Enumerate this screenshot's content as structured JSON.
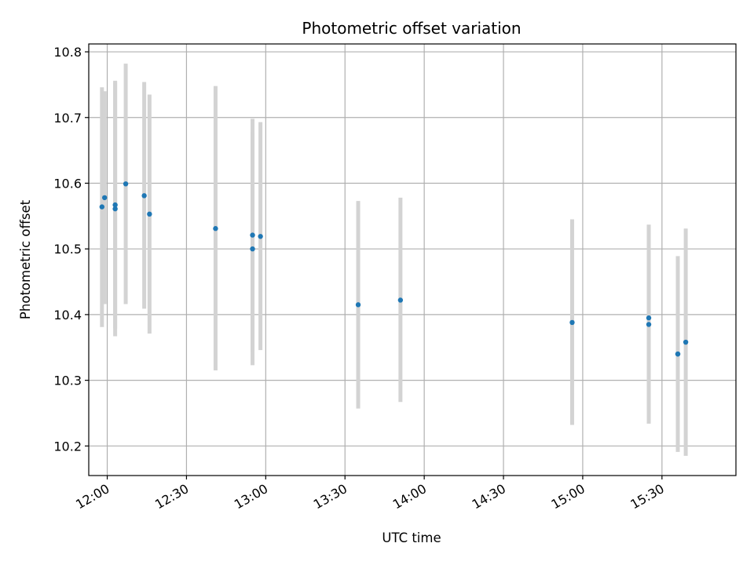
{
  "chart_data": {
    "type": "scatter",
    "title": "Photometric offset variation",
    "xlabel": "UTC time",
    "ylabel": "Photometric offset",
    "x_unit": "UTC time of day (HH:MM)",
    "xlim": [
      "11:53",
      "15:58"
    ],
    "ylim": [
      10.155,
      10.812
    ],
    "x_ticks": [
      "12:00",
      "12:30",
      "13:00",
      "13:30",
      "14:00",
      "14:30",
      "15:00",
      "15:30"
    ],
    "y_ticks": [
      10.2,
      10.3,
      10.4,
      10.5,
      10.6,
      10.7,
      10.8
    ],
    "y_tick_labels": [
      "10.2",
      "10.3",
      "10.4",
      "10.5",
      "10.6",
      "10.7",
      "10.8"
    ],
    "grid": true,
    "x_tick_rotation": "30deg",
    "points": [
      {
        "x": "11:58",
        "y": 10.564,
        "err_low": 10.381,
        "err_high": 10.746
      },
      {
        "x": "11:59",
        "y": 10.578,
        "err_low": 10.416,
        "err_high": 10.74
      },
      {
        "x": "12:03",
        "y": 10.561,
        "err_low": 10.367,
        "err_high": 10.756
      },
      {
        "x": "12:03",
        "y": 10.567,
        "err_low": 10.379,
        "err_high": 10.754
      },
      {
        "x": "12:07",
        "y": 10.599,
        "err_low": 10.416,
        "err_high": 10.782
      },
      {
        "x": "12:14",
        "y": 10.581,
        "err_low": 10.409,
        "err_high": 10.754
      },
      {
        "x": "12:16",
        "y": 10.553,
        "err_low": 10.371,
        "err_high": 10.735
      },
      {
        "x": "12:41",
        "y": 10.531,
        "err_low": 10.315,
        "err_high": 10.748
      },
      {
        "x": "12:55",
        "y": 10.5,
        "err_low": 10.323,
        "err_high": 10.677
      },
      {
        "x": "12:55",
        "y": 10.521,
        "err_low": 10.344,
        "err_high": 10.698
      },
      {
        "x": "12:58",
        "y": 10.519,
        "err_low": 10.346,
        "err_high": 10.693
      },
      {
        "x": "13:35",
        "y": 10.415,
        "err_low": 10.257,
        "err_high": 10.573
      },
      {
        "x": "13:51",
        "y": 10.422,
        "err_low": 10.267,
        "err_high": 10.578
      },
      {
        "x": "14:56",
        "y": 10.388,
        "err_low": 10.232,
        "err_high": 10.545
      },
      {
        "x": "15:25",
        "y": 10.395,
        "err_low": 10.254,
        "err_high": 10.536
      },
      {
        "x": "15:25",
        "y": 10.385,
        "err_low": 10.234,
        "err_high": 10.537
      },
      {
        "x": "15:36",
        "y": 10.34,
        "err_low": 10.191,
        "err_high": 10.489
      },
      {
        "x": "15:36",
        "y": 10.34,
        "err_low": 10.193,
        "err_high": 10.488
      },
      {
        "x": "15:39",
        "y": 10.358,
        "err_low": 10.185,
        "err_high": 10.531
      }
    ],
    "colors": {
      "point": "#1f77b4",
      "errorbar": "#d3d3d3",
      "grid": "#b0b0b0",
      "axes": "#000000"
    }
  }
}
